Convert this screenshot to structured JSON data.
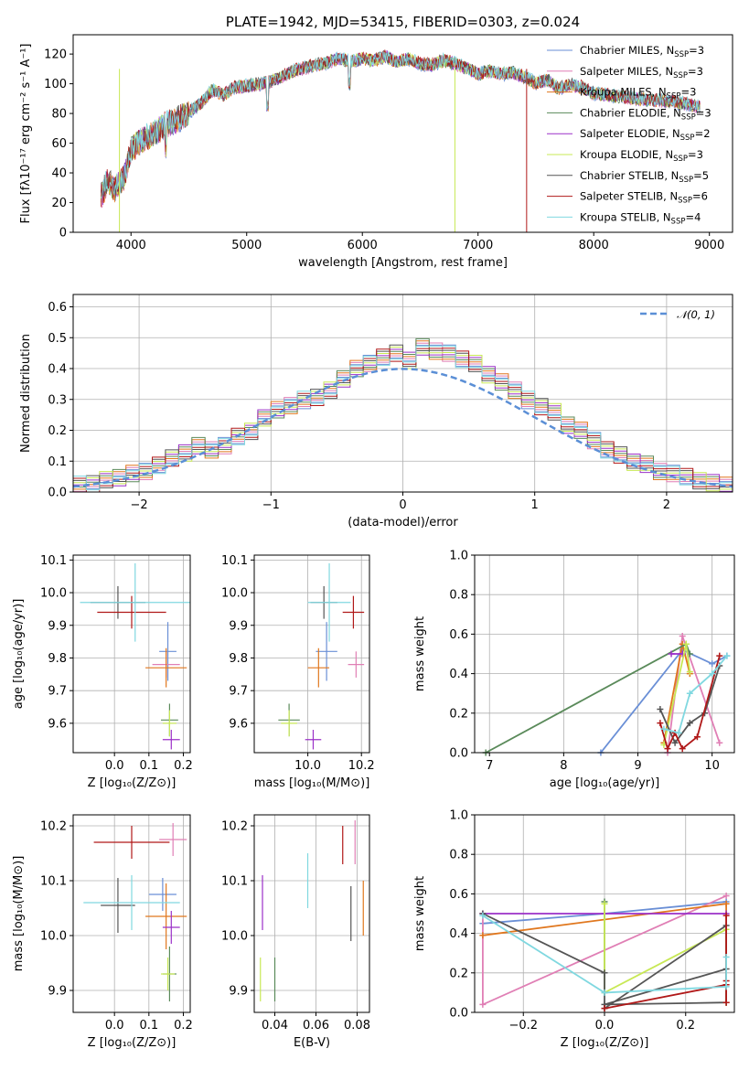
{
  "figure": {
    "title": "PLATE=1942, MJD=53415, FIBERID=0303, z=0.024"
  },
  "colors": {
    "chabrier_miles": "#6a8fd6",
    "salpeter_miles": "#e07fb5",
    "kroupa_miles": "#e0771e",
    "chabrier_elodie": "#5a8a5a",
    "salpeter_elodie": "#9b30c8",
    "kroupa_elodie": "#c8e855",
    "chabrier_stelib": "#555555",
    "salpeter_stelib": "#b01818",
    "kroupa_stelib": "#80d8e0"
  },
  "chart_data": [
    {
      "id": "spectrum",
      "type": "line",
      "title": "PLATE=1942, MJD=53415, FIBERID=0303, z=0.024",
      "xlabel": "wavelength [Angstrom, rest frame]",
      "ylabel": "Flux [fλ10⁻¹⁷ erg cm⁻² s⁻¹ A⁻¹]",
      "xlim": [
        3500,
        9200
      ],
      "ylim": [
        0,
        133
      ],
      "xticks": [
        4000,
        5000,
        6000,
        7000,
        8000,
        9000
      ],
      "yticks": [
        0,
        20,
        40,
        60,
        80,
        100,
        120
      ],
      "grid": false,
      "legend_position": "right",
      "x": [
        3750,
        3800,
        3850,
        3900,
        3950,
        4000,
        4100,
        4200,
        4300,
        4400,
        4500,
        4600,
        4700,
        4800,
        4900,
        5000,
        5100,
        5200,
        5300,
        5400,
        5500,
        5600,
        5700,
        5800,
        5900,
        6000,
        6100,
        6200,
        6300,
        6400,
        6500,
        6600,
        6700,
        6800,
        6900,
        7000,
        7100,
        7200,
        7300,
        7400,
        7500,
        7600,
        7700,
        7800,
        7900,
        8000,
        8200,
        8400,
        8600,
        8800,
        8900
      ],
      "flux": [
        25,
        35,
        28,
        32,
        38,
        55,
        62,
        66,
        72,
        75,
        80,
        86,
        95,
        92,
        97,
        98,
        99,
        101,
        104,
        108,
        110,
        112,
        114,
        117,
        114,
        116,
        115,
        118,
        114,
        116,
        113,
        112,
        115,
        113,
        110,
        106,
        108,
        106,
        107,
        104,
        100,
        102,
        96,
        99,
        97,
        93,
        91,
        89,
        88,
        86,
        84
      ],
      "legend": [
        {
          "label": "Chabrier MILES, N",
          "sub": "SSP",
          "suffix": "=3",
          "color_key": "chabrier_miles"
        },
        {
          "label": "Salpeter MILES, N",
          "sub": "SSP",
          "suffix": "=3",
          "color_key": "salpeter_miles"
        },
        {
          "label": "Kroupa MILES, N",
          "sub": "SSP",
          "suffix": "=3",
          "color_key": "kroupa_miles"
        },
        {
          "label": "Chabrier ELODIE, N",
          "sub": "SSP",
          "suffix": "=3",
          "color_key": "chabrier_elodie"
        },
        {
          "label": "Salpeter ELODIE, N",
          "sub": "SSP",
          "suffix": "=2",
          "color_key": "salpeter_elodie"
        },
        {
          "label": "Kroupa ELODIE, N",
          "sub": "SSP",
          "suffix": "=3",
          "color_key": "kroupa_elodie"
        },
        {
          "label": "Chabrier STELIB, N",
          "sub": "SSP",
          "suffix": "=5",
          "color_key": "chabrier_stelib"
        },
        {
          "label": "Salpeter STELIB, N",
          "sub": "SSP",
          "suffix": "=6",
          "color_key": "salpeter_stelib"
        },
        {
          "label": "Kroupa STELIB, N",
          "sub": "SSP",
          "suffix": "=4",
          "color_key": "kroupa_stelib"
        }
      ]
    },
    {
      "id": "residual_hist",
      "type": "bar",
      "xlabel": "(data-model)/error",
      "ylabel": "Normed distribution",
      "xlim": [
        -2.5,
        2.5
      ],
      "ylim": [
        0,
        0.64
      ],
      "xticks": [
        -2,
        -1,
        0,
        1,
        2
      ],
      "yticks": [
        0.0,
        0.1,
        0.2,
        0.3,
        0.4,
        0.5,
        0.6
      ],
      "grid": true,
      "legend_position": "top-right",
      "reference_label": "𝒩(0, 1)",
      "bin_width": 0.1,
      "bin_start": -2.5,
      "values": [
        0.025,
        0.03,
        0.04,
        0.05,
        0.06,
        0.07,
        0.09,
        0.11,
        0.13,
        0.15,
        0.14,
        0.15,
        0.18,
        0.2,
        0.24,
        0.27,
        0.28,
        0.3,
        0.31,
        0.33,
        0.37,
        0.4,
        0.42,
        0.44,
        0.45,
        0.43,
        0.47,
        0.46,
        0.45,
        0.43,
        0.42,
        0.38,
        0.36,
        0.33,
        0.3,
        0.28,
        0.26,
        0.22,
        0.2,
        0.17,
        0.14,
        0.12,
        0.1,
        0.09,
        0.07,
        0.06,
        0.05,
        0.04,
        0.03,
        0.025
      ]
    },
    {
      "id": "age_vs_Z",
      "type": "scatter",
      "xlabel": "Z [log₁₀(Z/Z⊙)]",
      "ylabel": "age  [log₁₀(age/yr)]",
      "xlim": [
        -0.12,
        0.22
      ],
      "ylim": [
        9.51,
        10.115
      ],
      "xticks": [
        0.0,
        0.1,
        0.2
      ],
      "yticks": [
        9.6,
        9.7,
        9.8,
        9.9,
        10.0,
        10.1
      ],
      "grid": true,
      "points": [
        {
          "key": "chabrier_miles",
          "x": 0.155,
          "y": 9.82,
          "xerr": 0.025,
          "yerr": 0.09
        },
        {
          "key": "salpeter_miles",
          "x": 0.15,
          "y": 9.78,
          "xerr": 0.04,
          "yerr": 0.04
        },
        {
          "key": "kroupa_miles",
          "x": 0.15,
          "y": 9.77,
          "xerr": 0.06,
          "yerr": 0.06
        },
        {
          "key": "chabrier_elodie",
          "x": 0.16,
          "y": 9.61,
          "xerr": 0.025,
          "yerr": 0.05
        },
        {
          "key": "salpeter_elodie",
          "x": 0.165,
          "y": 9.55,
          "xerr": 0.025,
          "yerr": 0.03
        },
        {
          "key": "kroupa_elodie",
          "x": 0.16,
          "y": 9.6,
          "xerr": 0.02,
          "yerr": 0.04
        },
        {
          "key": "chabrier_stelib",
          "x": 0.01,
          "y": 9.97,
          "xerr": 0.08,
          "yerr": 0.05
        },
        {
          "key": "salpeter_stelib",
          "x": 0.05,
          "y": 9.94,
          "xerr": 0.1,
          "yerr": 0.05
        },
        {
          "key": "kroupa_stelib",
          "x": 0.06,
          "y": 9.97,
          "xerr": 0.16,
          "yerr": 0.12
        }
      ]
    },
    {
      "id": "age_vs_mass",
      "type": "scatter",
      "xlabel": "mass [log₁₀(M/M⊙)]",
      "ylabel": "",
      "xlim": [
        9.8,
        10.23
      ],
      "ylim": [
        9.51,
        10.115
      ],
      "xticks": [
        10.0,
        10.2
      ],
      "yticks": [
        9.6,
        9.7,
        9.8,
        9.9,
        10.0,
        10.1
      ],
      "grid": true,
      "points": [
        {
          "key": "chabrier_miles",
          "x": 10.07,
          "y": 9.82,
          "xerr": 0.04,
          "yerr": 0.09
        },
        {
          "key": "salpeter_miles",
          "x": 10.18,
          "y": 9.78,
          "xerr": 0.03,
          "yerr": 0.04
        },
        {
          "key": "kroupa_miles",
          "x": 10.04,
          "y": 9.77,
          "xerr": 0.04,
          "yerr": 0.06
        },
        {
          "key": "chabrier_elodie",
          "x": 9.93,
          "y": 9.61,
          "xerr": 0.04,
          "yerr": 0.05
        },
        {
          "key": "salpeter_elodie",
          "x": 10.02,
          "y": 9.55,
          "xerr": 0.03,
          "yerr": 0.03
        },
        {
          "key": "kroupa_elodie",
          "x": 9.93,
          "y": 9.6,
          "xerr": 0.03,
          "yerr": 0.04
        },
        {
          "key": "chabrier_stelib",
          "x": 10.06,
          "y": 9.97,
          "xerr": 0.05,
          "yerr": 0.05
        },
        {
          "key": "salpeter_stelib",
          "x": 10.17,
          "y": 9.94,
          "xerr": 0.04,
          "yerr": 0.05
        },
        {
          "key": "kroupa_stelib",
          "x": 10.08,
          "y": 9.97,
          "xerr": 0.08,
          "yerr": 0.12
        }
      ]
    },
    {
      "id": "mass_weight_vs_age",
      "type": "line",
      "xlabel": "age  [log₁₀(age/yr)]",
      "ylabel": "mass weight",
      "xlim": [
        6.8,
        10.3
      ],
      "ylim": [
        0,
        1
      ],
      "xticks": [
        7,
        8,
        9,
        10
      ],
      "yticks": [
        0.0,
        0.2,
        0.4,
        0.6,
        0.8,
        1.0
      ],
      "grid": true,
      "series": [
        {
          "key": "chabrier_miles",
          "x": [
            8.5,
            9.6,
            10.0,
            10.2
          ],
          "y": [
            0.0,
            0.52,
            0.45,
            0.49
          ]
        },
        {
          "key": "salpeter_miles",
          "x": [
            9.4,
            9.6,
            10.1
          ],
          "y": [
            0.0,
            0.59,
            0.05
          ]
        },
        {
          "key": "kroupa_miles",
          "x": [
            9.35,
            9.6,
            9.7
          ],
          "y": [
            0.05,
            0.55,
            0.4
          ]
        },
        {
          "key": "chabrier_elodie",
          "x": [
            6.95,
            9.65,
            9.7
          ],
          "y": [
            0.0,
            0.55,
            0.5
          ]
        },
        {
          "key": "salpeter_elodie",
          "x": [
            9.45,
            9.6
          ],
          "y": [
            0.5,
            0.5
          ]
        },
        {
          "key": "kroupa_elodie",
          "x": [
            9.35,
            9.65,
            9.7
          ],
          "y": [
            0.04,
            0.55,
            0.41
          ]
        },
        {
          "key": "chabrier_stelib",
          "x": [
            9.3,
            9.5,
            9.7,
            9.9,
            10.1
          ],
          "y": [
            0.22,
            0.05,
            0.15,
            0.2,
            0.44
          ]
        },
        {
          "key": "salpeter_stelib",
          "x": [
            9.3,
            9.4,
            9.5,
            9.6,
            9.8,
            10.1
          ],
          "y": [
            0.15,
            0.02,
            0.1,
            0.02,
            0.08,
            0.49
          ]
        },
        {
          "key": "kroupa_stelib",
          "x": [
            9.35,
            9.55,
            9.7,
            10.0,
            10.2
          ],
          "y": [
            0.12,
            0.1,
            0.3,
            0.4,
            0.49
          ]
        }
      ]
    },
    {
      "id": "mass_vs_Z",
      "type": "scatter",
      "xlabel": "Z [log₁₀(Z/Z⊙)]",
      "ylabel": "mass [log₁₀(M/M⊙)]",
      "xlim": [
        -0.12,
        0.22
      ],
      "ylim": [
        9.86,
        10.22
      ],
      "xticks": [
        0.0,
        0.1,
        0.2
      ],
      "yticks": [
        9.9,
        10.0,
        10.1,
        10.2
      ],
      "grid": true,
      "points": [
        {
          "key": "chabrier_miles",
          "x": 0.14,
          "y": 10.075,
          "xerr": 0.04,
          "yerr": 0.03
        },
        {
          "key": "salpeter_miles",
          "x": 0.17,
          "y": 10.175,
          "xerr": 0.04,
          "yerr": 0.03
        },
        {
          "key": "kroupa_miles",
          "x": 0.15,
          "y": 10.035,
          "xerr": 0.06,
          "yerr": 0.06
        },
        {
          "key": "chabrier_elodie",
          "x": 0.16,
          "y": 9.93,
          "xerr": 0.02,
          "yerr": 0.05
        },
        {
          "key": "salpeter_elodie",
          "x": 0.165,
          "y": 10.015,
          "xerr": 0.025,
          "yerr": 0.03
        },
        {
          "key": "kroupa_elodie",
          "x": 0.155,
          "y": 9.93,
          "xerr": 0.02,
          "yerr": 0.03
        },
        {
          "key": "chabrier_stelib",
          "x": 0.01,
          "y": 10.055,
          "xerr": 0.05,
          "yerr": 0.05
        },
        {
          "key": "salpeter_stelib",
          "x": 0.05,
          "y": 10.17,
          "xerr": 0.11,
          "yerr": 0.03
        },
        {
          "key": "kroupa_stelib",
          "x": 0.05,
          "y": 10.06,
          "xerr": 0.14,
          "yerr": 0.05
        }
      ]
    },
    {
      "id": "mass_vs_ebv",
      "type": "scatter",
      "xlabel": "E(B-V)",
      "ylabel": "",
      "xlim": [
        0.03,
        0.086
      ],
      "ylim": [
        9.86,
        10.22
      ],
      "xticks": [
        0.04,
        0.06,
        0.08
      ],
      "yticks": [
        9.9,
        10.0,
        10.1,
        10.2
      ],
      "grid": true,
      "points": [
        {
          "key": "salpeter_miles",
          "x": 0.079,
          "y": 10.17,
          "xerr": 0.0,
          "yerr": 0.04
        },
        {
          "key": "kroupa_miles",
          "x": 0.083,
          "y": 10.05,
          "xerr": 0.0,
          "yerr": 0.05
        },
        {
          "key": "chabrier_elodie",
          "x": 0.04,
          "y": 9.92,
          "xerr": 0.0,
          "yerr": 0.04
        },
        {
          "key": "salpeter_elodie",
          "x": 0.034,
          "y": 10.06,
          "xerr": 0.0,
          "yerr": 0.05
        },
        {
          "key": "kroupa_elodie",
          "x": 0.033,
          "y": 9.92,
          "xerr": 0.0,
          "yerr": 0.04
        },
        {
          "key": "chabrier_stelib",
          "x": 0.077,
          "y": 10.04,
          "xerr": 0.0,
          "yerr": 0.05
        },
        {
          "key": "salpeter_stelib",
          "x": 0.073,
          "y": 10.165,
          "xerr": 0.0,
          "yerr": 0.035
        },
        {
          "key": "kroupa_stelib",
          "x": 0.056,
          "y": 10.1,
          "xerr": 0.0,
          "yerr": 0.05
        }
      ]
    },
    {
      "id": "mass_weight_vs_Z",
      "type": "line",
      "xlabel": "Z [log₁₀(Z/Z⊙)]",
      "ylabel": "mass weight",
      "xlim": [
        -0.32,
        0.32
      ],
      "ylim": [
        0,
        1
      ],
      "xticks": [
        -0.2,
        0.0,
        0.2
      ],
      "yticks": [
        0.0,
        0.2,
        0.4,
        0.6,
        0.8,
        1.0
      ],
      "grid": true,
      "series": [
        {
          "key": "chabrier_miles",
          "x": [
            -0.3,
            0.0,
            0.3
          ],
          "y": [
            0.45,
            0.5,
            0.56
          ]
        },
        {
          "key": "salpeter_miles",
          "x": [
            -0.3,
            -0.3,
            0.3
          ],
          "y": [
            0.5,
            0.04,
            0.59
          ]
        },
        {
          "key": "kroupa_miles",
          "x": [
            -0.3,
            0.3,
            0.3
          ],
          "y": [
            0.39,
            0.55,
            0.05
          ]
        },
        {
          "key": "chabrier_elodie",
          "x": [
            0.0,
            0.0
          ],
          "y": [
            0.56,
            0.1
          ]
        },
        {
          "key": "salpeter_elodie",
          "x": [
            -0.3,
            0.3
          ],
          "y": [
            0.5,
            0.5
          ]
        },
        {
          "key": "kroupa_elodie",
          "x": [
            0.0,
            0.0,
            0.3,
            0.3
          ],
          "y": [
            0.55,
            0.1,
            0.42,
            0.05
          ]
        },
        {
          "key": "chabrier_stelib",
          "x": [
            -0.3,
            0.0,
            0.0,
            0.3,
            0.3,
            0.0,
            0.3
          ],
          "y": [
            0.5,
            0.2,
            0.02,
            0.44,
            0.05,
            0.04,
            0.22
          ]
        },
        {
          "key": "salpeter_stelib",
          "x": [
            0.0,
            0.3,
            0.3,
            0.3,
            0.3
          ],
          "y": [
            0.02,
            0.14,
            0.16,
            0.49,
            0.05
          ]
        },
        {
          "key": "kroupa_stelib",
          "x": [
            -0.3,
            0.0,
            0.3,
            0.3
          ],
          "y": [
            0.49,
            0.1,
            0.13,
            0.28
          ]
        }
      ]
    }
  ]
}
